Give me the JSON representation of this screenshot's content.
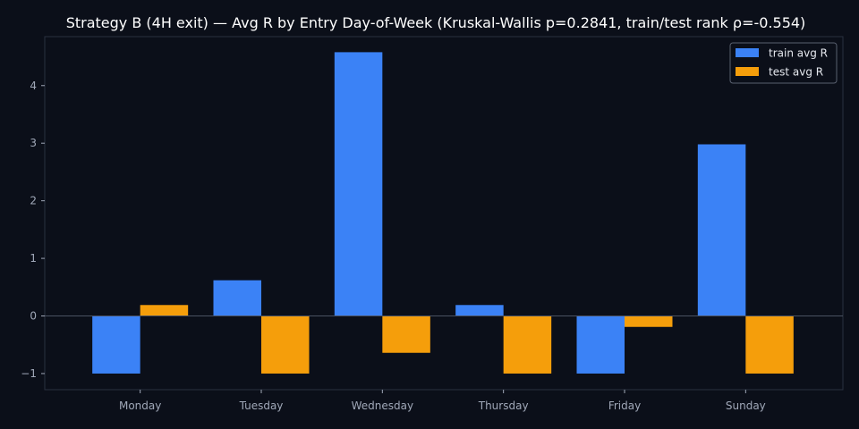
{
  "chart_data": {
    "type": "bar",
    "title": "Strategy B (4H exit) — Avg R by Entry Day-of-Week (Kruskal-Wallis p=0.2841, train/test rank ρ=-0.554)",
    "xlabel": "",
    "ylabel": "",
    "categories": [
      "Monday",
      "Tuesday",
      "Wednesday",
      "Thursday",
      "Friday",
      "Sunday"
    ],
    "series": [
      {
        "name": "train avg R",
        "color": "#3b82f6",
        "values": [
          -1.0,
          0.62,
          4.58,
          0.19,
          -1.0,
          2.98
        ]
      },
      {
        "name": "test avg R",
        "color": "#f59e0b",
        "values": [
          0.19,
          -1.0,
          -0.64,
          -1.0,
          -0.19,
          -1.0
        ]
      }
    ],
    "ylim": [
      -1.28,
      4.85
    ],
    "yticks": [
      -1,
      0,
      1,
      2,
      3,
      4
    ],
    "ytick_labels": [
      "−1",
      "0",
      "1",
      "2",
      "3",
      "4"
    ],
    "grid": false,
    "legend_position": "top-right",
    "colors": {
      "background": "#0b0f19",
      "axes_edge": "#2a3040",
      "zero_line": "#4a5160",
      "text": "#a0a8b8"
    }
  }
}
